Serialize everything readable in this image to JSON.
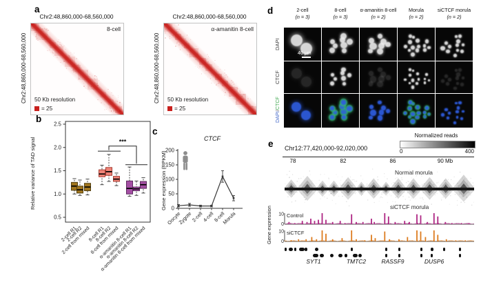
{
  "figure": {
    "panel_a": {
      "label": "a",
      "heat_color": "#c9201d",
      "maps": [
        {
          "title": "Chr2:48,860,000-68,560,000",
          "y_axis_label": "Chr2:48,860,000-68,560,000",
          "condition": "8-cell",
          "resolution_note": "50 Kb resolution",
          "scale_note": "= 25"
        },
        {
          "title": "Chr2:48,860,000-68,560,000",
          "y_axis_label": "Chr2:48,860,000-68,560,000",
          "condition": "α-amanitin 8-cell",
          "resolution_note": "50 Kb resolution",
          "scale_note": "= 25"
        }
      ]
    },
    "panel_b": {
      "label": "b"
    },
    "panel_c": {
      "label": "c"
    },
    "panel_d": {
      "label": "d",
      "columns": [
        {
          "line1": "2-cell",
          "line2": "(n = 3)",
          "cells": 2,
          "ctcf": "low"
        },
        {
          "line1": "8-cell",
          "line2": "(n = 3)",
          "cells": 8,
          "ctcf": "high"
        },
        {
          "line1": "α-amanitin 8-cell",
          "line2": "(n = 2)",
          "cells": 8,
          "ctcf": "low"
        },
        {
          "line1": "Morula",
          "line2": "(n = 2)",
          "cells": 14,
          "ctcf": "high"
        },
        {
          "line1": "siCTCF morula",
          "line2": "(n = 2)",
          "cells": 12,
          "ctcf": "low"
        }
      ],
      "rows": [
        {
          "text": "DAPI",
          "color": "#3c3c3c"
        },
        {
          "text": "CTCF",
          "color": "#3c3c3c"
        },
        {
          "parts": [
            {
              "text": "DAPI",
              "color": "#3e63c8"
            },
            {
              "text": "/",
              "color": "#555555"
            },
            {
              "text": "CTCF",
              "color": "#3aa54b"
            }
          ]
        }
      ],
      "scale_bar_label": "40 μm",
      "stain_colors": {
        "dapi": "#ececec",
        "ctcf": "#f5f5f5",
        "merge_dapi": "#2f5de0",
        "merge_ctcf": "#37c463"
      }
    },
    "panel_e": {
      "label": "e",
      "region_title": "Chr12:77,420,000-92,020,000",
      "colorbar": {
        "label": "Normalized reads",
        "min": "0",
        "max": "400"
      },
      "axis_ticks": [
        "78",
        "82",
        "86",
        "90 Mb"
      ],
      "hic_labels": {
        "top": "Normal morula",
        "bottom": "siCTCF morula"
      },
      "gene_axis_label": "Gene expression",
      "track_scale": {
        "max": "10",
        "min": "0"
      },
      "genes": [
        "SYT1",
        "TMTC2",
        "RASSF9",
        "DUSP6"
      ]
    }
  },
  "chart_data": [
    {
      "type": "box",
      "panel": "b",
      "ylabel": "Relative variance of TAD signal",
      "ylim": [
        0.5,
        2.5
      ],
      "yticks": [
        0.5,
        1.0,
        1.5,
        2.0,
        2.5
      ],
      "categories": [
        "2-cell R1",
        "2-cell R2",
        "2-cell from mixed",
        "8-cell R1",
        "8-cell R2",
        "8-cell from mixed",
        "α-amanitin 8-cell R1",
        "α-amanitin 8-cell R2",
        "α-amanitin 8-cell from mixed"
      ],
      "colors": [
        "#a0751e",
        "#a0751e",
        "#a0751e",
        "#f08478",
        "#f08478",
        "#f08478",
        "#a44fa4",
        "#a44fa4",
        "#a44fa4"
      ],
      "boxes": [
        {
          "lo": 1.0,
          "q1": 1.08,
          "med": 1.17,
          "q3": 1.25,
          "hi": 1.33
        },
        {
          "lo": 0.97,
          "q1": 1.02,
          "med": 1.09,
          "q3": 1.17,
          "hi": 1.3
        },
        {
          "lo": 0.98,
          "q1": 1.07,
          "med": 1.15,
          "q3": 1.23,
          "hi": 1.32
        },
        {
          "lo": 1.2,
          "q1": 1.37,
          "med": 1.43,
          "q3": 1.52,
          "hi": 1.62
        },
        {
          "lo": 1.27,
          "q1": 1.4,
          "med": 1.48,
          "q3": 1.57,
          "hi": 1.85
        },
        {
          "lo": 1.18,
          "q1": 1.27,
          "med": 1.32,
          "q3": 1.38,
          "hi": 1.45
        },
        {
          "lo": 0.95,
          "q1": 1.0,
          "med": 1.12,
          "q3": 1.28,
          "hi": 1.58
        },
        {
          "lo": 0.97,
          "q1": 1.07,
          "med": 1.11,
          "q3": 1.15,
          "hi": 1.28
        },
        {
          "lo": 1.02,
          "q1": 1.12,
          "med": 1.2,
          "q3": 1.27,
          "hi": 1.35
        }
      ],
      "significance": {
        "label": "***",
        "overline_8cell": {
          "boxes": [
            3,
            5
          ],
          "y": 1.92
        },
        "overline_amanitin": {
          "boxes": [
            6,
            8
          ],
          "y": 1.63
        },
        "bracket_y": 2.03
      }
    },
    {
      "type": "line",
      "panel": "c",
      "title": "CTCF",
      "ylabel": "Gene expression (RPKM)",
      "ylim": [
        0,
        200
      ],
      "yticks": [
        0,
        50,
        100,
        150,
        200
      ],
      "categories": [
        "Oocyte",
        "Zygote",
        "2-cell",
        "4-cell",
        "8-cell",
        "Morula"
      ],
      "values": [
        9,
        12,
        8,
        8,
        110,
        35
      ],
      "errors": [
        4,
        5,
        3,
        3,
        20,
        9
      ],
      "line_color": "#3a3a3a"
    },
    {
      "type": "area",
      "panel": "e",
      "ylabel": "Gene expression",
      "ylim": [
        0,
        10
      ],
      "series": [
        {
          "name": "Control",
          "color": "#ad2583",
          "peaks": [
            [
              0.02,
              2
            ],
            [
              0.05,
              1
            ],
            [
              0.09,
              3
            ],
            [
              0.115,
              2
            ],
            [
              0.135,
              5
            ],
            [
              0.155,
              3
            ],
            [
              0.175,
              4
            ],
            [
              0.195,
              10
            ],
            [
              0.215,
              4
            ],
            [
              0.25,
              2
            ],
            [
              0.29,
              3
            ],
            [
              0.315,
              1
            ],
            [
              0.35,
              9
            ],
            [
              0.375,
              2
            ],
            [
              0.41,
              2
            ],
            [
              0.455,
              5
            ],
            [
              0.47,
              2
            ],
            [
              0.525,
              10
            ],
            [
              0.545,
              7
            ],
            [
              0.58,
              2
            ],
            [
              0.63,
              3
            ],
            [
              0.655,
              2
            ],
            [
              0.695,
              9
            ],
            [
              0.715,
              8
            ],
            [
              0.75,
              2
            ],
            [
              0.785,
              10
            ],
            [
              0.805,
              7
            ],
            [
              0.845,
              2
            ],
            [
              0.88,
              1
            ],
            [
              0.93,
              1
            ],
            [
              0.97,
              1
            ]
          ]
        },
        {
          "name": "siCTCF",
          "color": "#dd7b1f",
          "peaks": [
            [
              0.03,
              1
            ],
            [
              0.07,
              2
            ],
            [
              0.11,
              2
            ],
            [
              0.14,
              4
            ],
            [
              0.165,
              2
            ],
            [
              0.195,
              10
            ],
            [
              0.215,
              7
            ],
            [
              0.25,
              2
            ],
            [
              0.3,
              3
            ],
            [
              0.35,
              10
            ],
            [
              0.375,
              2
            ],
            [
              0.42,
              1
            ],
            [
              0.455,
              6
            ],
            [
              0.475,
              3
            ],
            [
              0.525,
              9
            ],
            [
              0.55,
              2
            ],
            [
              0.6,
              2
            ],
            [
              0.645,
              4
            ],
            [
              0.695,
              10
            ],
            [
              0.715,
              9
            ],
            [
              0.74,
              4
            ],
            [
              0.785,
              10
            ],
            [
              0.805,
              6
            ],
            [
              0.85,
              2
            ],
            [
              0.9,
              1
            ],
            [
              0.95,
              1
            ]
          ]
        }
      ]
    }
  ]
}
